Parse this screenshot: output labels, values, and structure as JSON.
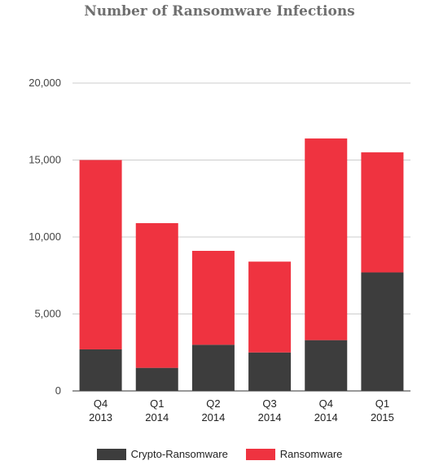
{
  "chart_data": {
    "type": "bar",
    "stacked": true,
    "title": "Number of Ransomware Infections",
    "xlabel": "",
    "ylabel": "",
    "ylim": [
      0,
      20000
    ],
    "yticks": [
      0,
      5000,
      10000,
      15000,
      20000
    ],
    "ytick_labels": [
      "0",
      "5,000",
      "10,000",
      "15,000",
      "20,000"
    ],
    "grid": true,
    "legend_position": "bottom",
    "categories": [
      [
        "Q4",
        "2013"
      ],
      [
        "Q1",
        "2014"
      ],
      [
        "Q2",
        "2014"
      ],
      [
        "Q3",
        "2014"
      ],
      [
        "Q4",
        "2014"
      ],
      [
        "Q1",
        "2015"
      ]
    ],
    "series": [
      {
        "name": "Crypto-Ransomware",
        "color": "#3d3d3d",
        "values": [
          2700,
          1500,
          3000,
          2500,
          3300,
          7700
        ]
      },
      {
        "name": "Ransomware",
        "color": "#ef3340",
        "values": [
          12300,
          9400,
          6100,
          5900,
          13100,
          7800
        ]
      }
    ]
  }
}
